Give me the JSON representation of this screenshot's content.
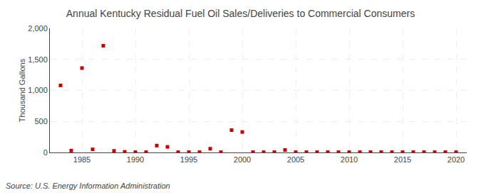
{
  "chart_data": {
    "type": "scatter",
    "title": "Annual Kentucky Residual Fuel Oil Sales/Deliveries to Commercial Consumers",
    "ylabel": "Thousand Gallons",
    "annotations": [
      "Source: U.S. Energy Information Administration"
    ],
    "x": [
      1983,
      1984,
      1985,
      1986,
      1987,
      1988,
      1989,
      1990,
      1991,
      1992,
      1993,
      1994,
      1995,
      1996,
      1997,
      1998,
      1999,
      2000,
      2001,
      2002,
      2003,
      2004,
      2005,
      2006,
      2007,
      2008,
      2009,
      2010,
      2011,
      2012,
      2013,
      2014,
      2015,
      2016,
      2017,
      2018,
      2019,
      2020
    ],
    "values": [
      1080,
      30,
      1360,
      50,
      1720,
      25,
      10,
      5,
      5,
      110,
      90,
      5,
      5,
      5,
      60,
      5,
      360,
      330,
      5,
      5,
      5,
      40,
      5,
      5,
      5,
      5,
      5,
      5,
      5,
      5,
      5,
      5,
      5,
      5,
      5,
      5,
      5,
      5
    ],
    "color": "#cc0000",
    "marker": "square",
    "xlim": [
      1982,
      2021
    ],
    "xticks": [
      1985,
      1990,
      1995,
      2000,
      2005,
      2010,
      2015,
      2020
    ],
    "ylim": [
      0,
      2000
    ],
    "yticks": [
      0,
      500,
      {
        "value": 1000,
        "label": "1,000"
      },
      {
        "value": 1500,
        "label": "1,500"
      },
      {
        "value": 2000,
        "label": "2,000"
      }
    ],
    "grid": true
  }
}
